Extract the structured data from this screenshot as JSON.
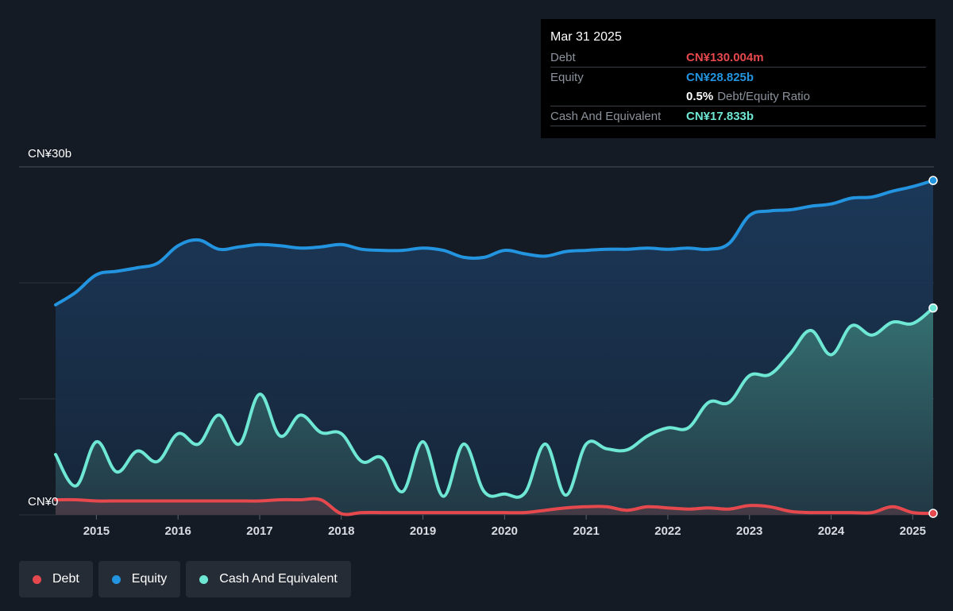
{
  "tooltip": {
    "date": "Mar 31 2025",
    "debt_label": "Debt",
    "debt_value": "CN¥130.004m",
    "equity_label": "Equity",
    "equity_value": "CN¥28.825b",
    "ratio_value": "0.5%",
    "ratio_label": "Debt/Equity Ratio",
    "cash_label": "Cash And Equivalent",
    "cash_value": "CN¥17.833b"
  },
  "legend": [
    {
      "label": "Debt",
      "color": "#e5484d"
    },
    {
      "label": "Equity",
      "color": "#2394df"
    },
    {
      "label": "Cash And Equivalent",
      "color": "#6ee7d4"
    }
  ],
  "chart_data": {
    "type": "area",
    "title": "",
    "xlabel": "",
    "ylabel": "",
    "unit": "CN¥ billions",
    "ylim": [
      0,
      30
    ],
    "xlim": [
      2014.5,
      2025.25
    ],
    "x_ticks": [
      2015,
      2016,
      2017,
      2018,
      2019,
      2020,
      2021,
      2022,
      2023,
      2024,
      2025
    ],
    "y_tick_labels": [
      {
        "value": 30,
        "label": "CN¥30b"
      },
      {
        "value": 0,
        "label": "CN¥0"
      }
    ],
    "gridlines": [
      0,
      10,
      20,
      30
    ],
    "series": [
      {
        "name": "Equity",
        "color": "#2394df",
        "points": [
          [
            2014.5,
            18.1
          ],
          [
            2014.75,
            19.2
          ],
          [
            2015.0,
            20.7
          ],
          [
            2015.25,
            21.0
          ],
          [
            2015.5,
            21.3
          ],
          [
            2015.75,
            21.7
          ],
          [
            2016.0,
            23.2
          ],
          [
            2016.25,
            23.7
          ],
          [
            2016.5,
            22.9
          ],
          [
            2016.75,
            23.1
          ],
          [
            2017.0,
            23.3
          ],
          [
            2017.25,
            23.2
          ],
          [
            2017.5,
            23.0
          ],
          [
            2017.75,
            23.1
          ],
          [
            2018.0,
            23.3
          ],
          [
            2018.25,
            22.9
          ],
          [
            2018.5,
            22.8
          ],
          [
            2018.75,
            22.8
          ],
          [
            2019.0,
            23.0
          ],
          [
            2019.25,
            22.8
          ],
          [
            2019.5,
            22.2
          ],
          [
            2019.75,
            22.2
          ],
          [
            2020.0,
            22.8
          ],
          [
            2020.25,
            22.5
          ],
          [
            2020.5,
            22.3
          ],
          [
            2020.75,
            22.7
          ],
          [
            2021.0,
            22.8
          ],
          [
            2021.25,
            22.9
          ],
          [
            2021.5,
            22.9
          ],
          [
            2021.75,
            23.0
          ],
          [
            2022.0,
            22.9
          ],
          [
            2022.25,
            23.0
          ],
          [
            2022.5,
            22.9
          ],
          [
            2022.75,
            23.4
          ],
          [
            2023.0,
            25.8
          ],
          [
            2023.25,
            26.2
          ],
          [
            2023.5,
            26.3
          ],
          [
            2023.75,
            26.6
          ],
          [
            2024.0,
            26.8
          ],
          [
            2024.25,
            27.3
          ],
          [
            2024.5,
            27.4
          ],
          [
            2024.75,
            27.9
          ],
          [
            2025.0,
            28.3
          ],
          [
            2025.25,
            28.825
          ]
        ]
      },
      {
        "name": "Cash And Equivalent",
        "color": "#6ee7d4",
        "points": [
          [
            2014.5,
            5.2
          ],
          [
            2014.75,
            2.5
          ],
          [
            2015.0,
            6.3
          ],
          [
            2015.25,
            3.7
          ],
          [
            2015.5,
            5.5
          ],
          [
            2015.75,
            4.6
          ],
          [
            2016.0,
            7.0
          ],
          [
            2016.25,
            6.1
          ],
          [
            2016.5,
            8.6
          ],
          [
            2016.75,
            6.1
          ],
          [
            2017.0,
            10.4
          ],
          [
            2017.25,
            6.8
          ],
          [
            2017.5,
            8.6
          ],
          [
            2017.75,
            7.1
          ],
          [
            2018.0,
            7.0
          ],
          [
            2018.25,
            4.6
          ],
          [
            2018.5,
            4.9
          ],
          [
            2018.75,
            2.0
          ],
          [
            2019.0,
            6.3
          ],
          [
            2019.25,
            1.6
          ],
          [
            2019.5,
            6.1
          ],
          [
            2019.75,
            2.0
          ],
          [
            2020.0,
            1.8
          ],
          [
            2020.25,
            1.9
          ],
          [
            2020.5,
            6.1
          ],
          [
            2020.75,
            1.7
          ],
          [
            2021.0,
            6.1
          ],
          [
            2021.25,
            5.7
          ],
          [
            2021.5,
            5.6
          ],
          [
            2021.75,
            6.8
          ],
          [
            2022.0,
            7.5
          ],
          [
            2022.25,
            7.5
          ],
          [
            2022.5,
            9.7
          ],
          [
            2022.75,
            9.7
          ],
          [
            2023.0,
            12.0
          ],
          [
            2023.25,
            12.1
          ],
          [
            2023.5,
            13.9
          ],
          [
            2023.75,
            15.9
          ],
          [
            2024.0,
            13.8
          ],
          [
            2024.25,
            16.3
          ],
          [
            2024.5,
            15.5
          ],
          [
            2024.75,
            16.6
          ],
          [
            2025.0,
            16.5
          ],
          [
            2025.25,
            17.833
          ]
        ]
      },
      {
        "name": "Debt",
        "color": "#e5484d",
        "points": [
          [
            2014.5,
            1.3
          ],
          [
            2014.75,
            1.3
          ],
          [
            2015.0,
            1.2
          ],
          [
            2015.25,
            1.2
          ],
          [
            2015.5,
            1.2
          ],
          [
            2015.75,
            1.2
          ],
          [
            2016.0,
            1.2
          ],
          [
            2016.25,
            1.2
          ],
          [
            2016.5,
            1.2
          ],
          [
            2016.75,
            1.2
          ],
          [
            2017.0,
            1.2
          ],
          [
            2017.25,
            1.3
          ],
          [
            2017.5,
            1.3
          ],
          [
            2017.75,
            1.3
          ],
          [
            2018.0,
            0.1
          ],
          [
            2018.25,
            0.2
          ],
          [
            2018.5,
            0.2
          ],
          [
            2018.75,
            0.2
          ],
          [
            2019.0,
            0.2
          ],
          [
            2019.25,
            0.2
          ],
          [
            2019.5,
            0.2
          ],
          [
            2019.75,
            0.2
          ],
          [
            2020.0,
            0.2
          ],
          [
            2020.25,
            0.2
          ],
          [
            2020.5,
            0.4
          ],
          [
            2020.75,
            0.6
          ],
          [
            2021.0,
            0.7
          ],
          [
            2021.25,
            0.7
          ],
          [
            2021.5,
            0.4
          ],
          [
            2021.75,
            0.7
          ],
          [
            2022.0,
            0.6
          ],
          [
            2022.25,
            0.5
          ],
          [
            2022.5,
            0.6
          ],
          [
            2022.75,
            0.5
          ],
          [
            2023.0,
            0.8
          ],
          [
            2023.25,
            0.7
          ],
          [
            2023.5,
            0.3
          ],
          [
            2023.75,
            0.2
          ],
          [
            2024.0,
            0.2
          ],
          [
            2024.25,
            0.2
          ],
          [
            2024.5,
            0.2
          ],
          [
            2024.75,
            0.7
          ],
          [
            2025.0,
            0.2
          ],
          [
            2025.25,
            0.13
          ]
        ]
      }
    ]
  }
}
